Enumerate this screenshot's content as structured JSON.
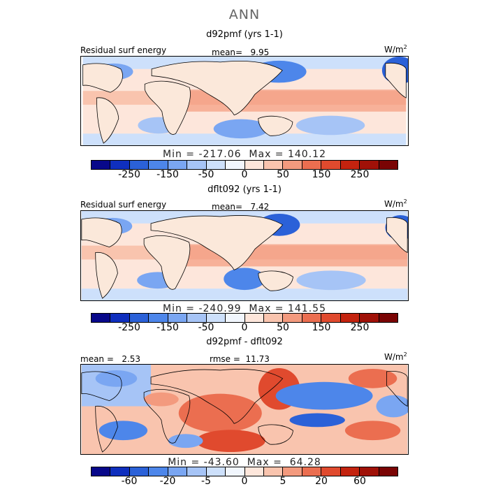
{
  "title": "ANN",
  "colormap": [
    "#08088a",
    "#0f2fbe",
    "#2b61d8",
    "#4d86ea",
    "#7aa6f2",
    "#a6c4f6",
    "#cde0fb",
    "#f1f6fd",
    "#fde6db",
    "#f9c4ae",
    "#f39a7e",
    "#eb6e50",
    "#e04a2e",
    "#c4230f",
    "#a01108",
    "#7a0404"
  ],
  "land_color": "#fbe8da",
  "panels": [
    {
      "title": "d92pmf (yrs 1-1)",
      "left_label": "Residual surf energy",
      "stat_text": "mean=   9.95",
      "units": "W/m",
      "units_sup": "2",
      "minmax": "Min = -217.06  Max = 140.12",
      "ticks": [
        "-250",
        "-150",
        "-50",
        "0",
        "50",
        "150",
        "250"
      ]
    },
    {
      "title": "dflt092 (yrs 1-1)",
      "left_label": "Residual surf energy",
      "stat_text": "mean=   7.42",
      "units": "W/m",
      "units_sup": "2",
      "minmax": "Min = -240.99  Max = 141.55",
      "ticks": [
        "-250",
        "-150",
        "-50",
        "0",
        "50",
        "150",
        "250"
      ]
    },
    {
      "title": "d92pmf - dflt092",
      "left_label": "mean =   2.53",
      "stat_text": "rmse =  11.73",
      "units": "W/m",
      "units_sup": "2",
      "minmax": "Min = -43.60  Max =  64.28",
      "ticks": [
        "-60",
        "-20",
        "-5",
        "0",
        "5",
        "20",
        "60"
      ]
    }
  ]
}
